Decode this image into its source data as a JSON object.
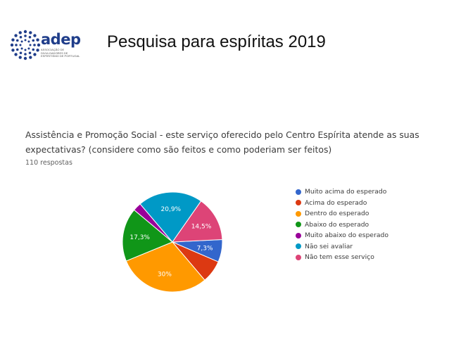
{
  "header": {
    "logo_text": "adep",
    "logo_subtitle": "Associação de Divulgadores de Espiritismo de Portugal",
    "title": "Pesquisa para espíritas  2019"
  },
  "question": {
    "text": "Assistência e Promoção Social - este serviço oferecido pelo Centro Espírita atende as suas expectativas? (considere como são feitos e como poderiam ser feitos)",
    "responses": "110 respostas"
  },
  "chart_data": {
    "type": "pie",
    "slices": [
      {
        "label": "Muito acima do esperado",
        "value": 7.3,
        "display": "7,3%",
        "color": "#3366cc"
      },
      {
        "label": "Acima do esperado",
        "value": 7.3,
        "display": "",
        "color": "#dc3912"
      },
      {
        "label": "Dentro do esperado",
        "value": 30.0,
        "display": "30%",
        "color": "#ff9900"
      },
      {
        "label": "Abaixo do esperado",
        "value": 17.3,
        "display": "17,3%",
        "color": "#109618"
      },
      {
        "label": "Muito abaixo do esperado",
        "value": 2.7,
        "display": "",
        "color": "#990099"
      },
      {
        "label": "Não sei avaliar",
        "value": 20.9,
        "display": "20,9%",
        "color": "#0099c6"
      },
      {
        "label": "Não tem esse serviço",
        "value": 14.5,
        "display": "14,5%",
        "color": "#dd4477"
      }
    ],
    "legend_position": "right"
  }
}
